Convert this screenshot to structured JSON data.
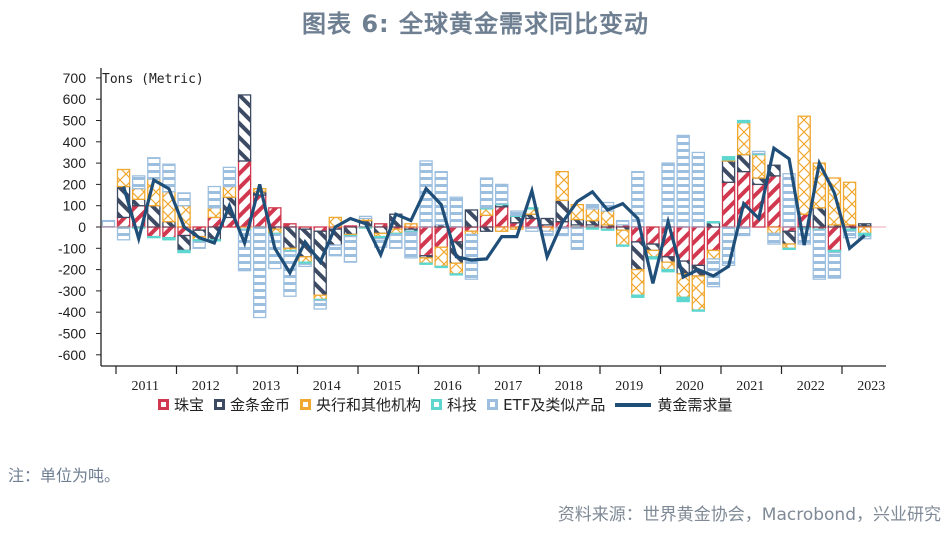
{
  "title": "图表 6:  全球黄金需求同比变动",
  "note": "注：单位为吨。",
  "source": "资料来源：世界黄金协会，Macrobond，兴业研究",
  "chart_data": {
    "type": "bar",
    "subtype": "stacked bar with line overlay",
    "title": "全球黄金需求同比变动",
    "ylabel": "Tons (Metric)",
    "xlabel": "",
    "ylim": [
      -600,
      700
    ],
    "yticks": [
      700,
      600,
      500,
      400,
      300,
      200,
      100,
      0,
      -100,
      -200,
      -300,
      -400,
      -500,
      -600
    ],
    "x_tick_labels": [
      "2011",
      "2012",
      "2013",
      "2014",
      "2015",
      "2016",
      "2017",
      "2018",
      "2019",
      "2020",
      "2021",
      "2022",
      "2023"
    ],
    "frequency": "quarterly",
    "categories": [
      "2010Q4",
      "2011Q1",
      "2011Q2",
      "2011Q3",
      "2011Q4",
      "2012Q1",
      "2012Q2",
      "2012Q3",
      "2012Q4",
      "2013Q1",
      "2013Q2",
      "2013Q3",
      "2013Q4",
      "2014Q1",
      "2014Q2",
      "2014Q3",
      "2014Q4",
      "2015Q1",
      "2015Q2",
      "2015Q3",
      "2015Q4",
      "2016Q1",
      "2016Q2",
      "2016Q3",
      "2016Q4",
      "2017Q1",
      "2017Q2",
      "2017Q3",
      "2017Q4",
      "2018Q1",
      "2018Q2",
      "2018Q3",
      "2018Q4",
      "2019Q1",
      "2019Q2",
      "2019Q3",
      "2019Q4",
      "2020Q1",
      "2020Q2",
      "2020Q3",
      "2020Q4",
      "2021Q1",
      "2021Q2",
      "2021Q3",
      "2021Q4",
      "2022Q1",
      "2022Q2",
      "2022Q3",
      "2022Q4",
      "2023Q1",
      "2023Q2"
    ],
    "legend_position": "bottom",
    "grid": false,
    "series": [
      {
        "name": "珠宝",
        "kind": "bar",
        "color": "#d1384f",
        "pattern": "diagonal-stripes",
        "values": [
          0,
          45,
          100,
          -45,
          -50,
          -40,
          -15,
          45,
          45,
          310,
          150,
          90,
          15,
          -10,
          -20,
          -10,
          5,
          0,
          15,
          -10,
          -10,
          -135,
          -95,
          -70,
          -20,
          55,
          95,
          20,
          40,
          10,
          25,
          10,
          10,
          -10,
          10,
          -70,
          -80,
          -140,
          -160,
          -180,
          -110,
          210,
          260,
          200,
          240,
          -20,
          60,
          -10,
          -110,
          10,
          5
        ]
      },
      {
        "name": "金条金币",
        "kind": "bar",
        "color": "#3d4a63",
        "pattern": "diagonal-stripes",
        "values": [
          0,
          145,
          30,
          100,
          25,
          -70,
          -30,
          -60,
          95,
          310,
          15,
          -10,
          -100,
          -130,
          -300,
          -75,
          -35,
          30,
          -30,
          60,
          -10,
          -10,
          10,
          -100,
          80,
          -20,
          10,
          30,
          20,
          30,
          100,
          25,
          20,
          10,
          -15,
          -130,
          -30,
          -25,
          -60,
          -50,
          20,
          100,
          80,
          30,
          50,
          -60,
          -5,
          90,
          10,
          -10,
          10
        ]
      },
      {
        "name": "央行和其他机构",
        "kind": "bar",
        "color": "#f0a830",
        "pattern": "cross-hatch",
        "values": [
          0,
          80,
          50,
          125,
          140,
          100,
          -15,
          45,
          50,
          -10,
          15,
          -20,
          -10,
          -25,
          -20,
          45,
          -5,
          10,
          -15,
          -20,
          15,
          -25,
          -90,
          -50,
          -15,
          30,
          -20,
          -10,
          25,
          -20,
          135,
          70,
          55,
          65,
          -70,
          -120,
          -30,
          -35,
          -110,
          -160,
          -40,
          5,
          150,
          110,
          -30,
          -20,
          460,
          210,
          220,
          200,
          -30
        ]
      },
      {
        "name": "科技",
        "kind": "bar",
        "color": "#5dd6cf",
        "pattern": "dotted",
        "values": [
          0,
          -5,
          -5,
          -5,
          -10,
          -10,
          -10,
          -5,
          0,
          -5,
          -5,
          -5,
          -5,
          -10,
          -5,
          0,
          -5,
          -5,
          -10,
          -5,
          -5,
          -5,
          -5,
          -5,
          0,
          5,
          5,
          5,
          5,
          0,
          0,
          -5,
          -10,
          -5,
          -5,
          -10,
          -10,
          -10,
          -20,
          -5,
          5,
          15,
          10,
          5,
          0,
          -5,
          -5,
          -5,
          -10,
          -10,
          -15
        ]
      },
      {
        "name": "ETF及类似产品",
        "kind": "bar",
        "color": "#9dbfdf",
        "pattern": "horizontal-stripes",
        "values": [
          30,
          -55,
          60,
          100,
          130,
          60,
          -30,
          100,
          90,
          -190,
          -420,
          -160,
          -210,
          -10,
          -40,
          -50,
          -120,
          10,
          -40,
          -65,
          -120,
          310,
          250,
          140,
          -210,
          140,
          90,
          20,
          -20,
          -20,
          -40,
          -100,
          20,
          40,
          20,
          260,
          0,
          300,
          430,
          350,
          -130,
          -180,
          -40,
          10,
          -50,
          250,
          -70,
          -230,
          -120,
          -30,
          -10
        ]
      },
      {
        "name": "黄金需求量",
        "kind": "line",
        "color": "#1f4e79",
        "values": [
          null,
          190,
          -55,
          220,
          180,
          0,
          -50,
          -75,
          100,
          -75,
          200,
          -100,
          -215,
          -70,
          -165,
          0,
          40,
          15,
          -130,
          60,
          30,
          180,
          105,
          -140,
          -155,
          -150,
          -45,
          -45,
          170,
          -140,
          20,
          120,
          165,
          80,
          110,
          40,
          -265,
          25,
          -235,
          -200,
          -230,
          -185,
          110,
          40,
          370,
          320,
          -85,
          300,
          160,
          -100,
          -40
        ]
      }
    ]
  },
  "legend": [
    {
      "label": "珠宝",
      "color": "#d1384f",
      "icon": "hatched-square-swatch"
    },
    {
      "label": "金条金币",
      "color": "#3d4a63",
      "icon": "hatched-square-swatch"
    },
    {
      "label": "央行和其他机构",
      "color": "#f0a830",
      "icon": "crosshatched-square-swatch"
    },
    {
      "label": "科技",
      "color": "#5dd6cf",
      "icon": "hatched-square-swatch"
    },
    {
      "label": "ETF及类似产品",
      "color": "#9dbfdf",
      "icon": "striped-square-swatch"
    },
    {
      "label": "黄金需求量",
      "color": "#1f4e79",
      "icon": "line-swatch"
    }
  ]
}
